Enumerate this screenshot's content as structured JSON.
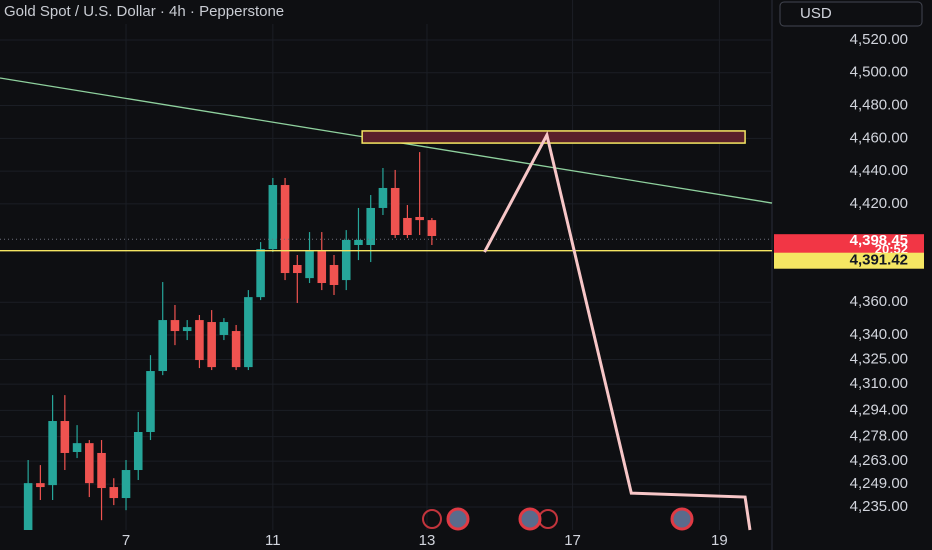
{
  "chart_data": {
    "type": "candlestick",
    "title": "Gold Spot / U.S. Dollar · 4h · Pepperstone",
    "currency": "USD",
    "up_color": "#26a69a",
    "down_color": "#ef5350",
    "x": [
      0,
      1,
      2,
      3,
      4,
      5,
      6,
      7,
      8,
      9,
      10,
      11,
      12,
      13,
      14,
      15,
      16,
      17,
      18,
      19,
      20,
      21,
      22,
      23,
      24,
      25,
      26,
      27,
      28,
      29,
      30,
      31,
      32,
      33
    ],
    "open": [
      4221.0,
      4249.6,
      4248.4,
      4287.5,
      4268.6,
      4274.0,
      4268.0,
      4247.2,
      4240.5,
      4257.6,
      4280.8,
      4318.0,
      4349.1,
      4342.4,
      4349.1,
      4347.9,
      4340.0,
      4342.4,
      4320.4,
      4363.1,
      4392.4,
      4431.5,
      4382.7,
      4374.7,
      4391.8,
      4382.7,
      4373.5,
      4394.9,
      4394.9,
      4417.5,
      4429.7,
      4411.4,
      4412.0,
      4410.1
    ],
    "high": [
      4263.7,
      4260.6,
      4303.3,
      4303.3,
      4285.0,
      4275.9,
      4275.9,
      4252.6,
      4263.7,
      4293.0,
      4327.7,
      4372.3,
      4358.3,
      4349.1,
      4352.2,
      4355.2,
      4350.3,
      4346.1,
      4367.4,
      4396.7,
      4435.8,
      4435.8,
      4388.8,
      4402.8,
      4402.8,
      4388.8,
      4404.0,
      4417.5,
      4425.4,
      4441.9,
      4440.7,
      4419.3,
      4451.6,
      4411.4
    ],
    "low": [
      4221.0,
      4239.3,
      4239.3,
      4257.6,
      4264.9,
      4241.1,
      4227.0,
      4236.2,
      4233.1,
      4251.5,
      4275.9,
      4315.5,
      4333.8,
      4336.9,
      4319.8,
      4318.6,
      4336.9,
      4318.6,
      4318.6,
      4361.3,
      4390.6,
      4373.5,
      4359.5,
      4371.7,
      4367.4,
      4364.4,
      4367.4,
      4385.7,
      4384.5,
      4413.2,
      4399.2,
      4399.2,
      4401.0,
      4394.9
    ],
    "close": [
      4249.6,
      4247.2,
      4287.5,
      4268.0,
      4274.0,
      4249.6,
      4246.6,
      4240.5,
      4257.6,
      4280.8,
      4318.0,
      4349.1,
      4342.4,
      4344.8,
      4324.7,
      4320.4,
      4347.9,
      4320.4,
      4363.1,
      4392.4,
      4431.5,
      4377.8,
      4377.8,
      4391.8,
      4371.7,
      4370.5,
      4398.0,
      4398.0,
      4417.5,
      4429.7,
      4401.0,
      4401.0,
      4410.1,
      4400.4
    ],
    "xlim": [
      -2.3,
      60.8
    ],
    "xticks": [
      {
        "value": 8,
        "label": "7"
      },
      {
        "value": 20,
        "label": "11"
      },
      {
        "value": 32.6,
        "label": "13"
      },
      {
        "value": 44.5,
        "label": "17"
      },
      {
        "value": 56.5,
        "label": "19"
      }
    ],
    "ylim": [
      4221.0,
      4544.4
    ],
    "yticks": [
      {
        "value": 4520,
        "label": "4,520.00"
      },
      {
        "value": 4500,
        "label": "4,500.00"
      },
      {
        "value": 4480,
        "label": "4,480.00"
      },
      {
        "value": 4460,
        "label": "4,460.00"
      },
      {
        "value": 4440,
        "label": "4,440.00"
      },
      {
        "value": 4420,
        "label": "4,420.00"
      },
      {
        "value": 4360,
        "label": "4,360.00"
      },
      {
        "value": 4340,
        "label": "4,340.00"
      },
      {
        "value": 4325,
        "label": "4,325.00"
      },
      {
        "value": 4310,
        "label": "4,310.00"
      },
      {
        "value": 4294,
        "label": "4,294.00"
      },
      {
        "value": 4278,
        "label": "4,278.00"
      },
      {
        "value": 4263,
        "label": "4,263.00"
      },
      {
        "value": 4249,
        "label": "4,249.00"
      },
      {
        "value": 4235,
        "label": "4,235.00"
      }
    ],
    "grid": true,
    "current_price": {
      "value": 4398.45,
      "label": "4,398.45",
      "countdown": "20:52",
      "color": "#f23645"
    },
    "level": {
      "value": 4391.42,
      "label": "4,391.42",
      "color": "#f5e663"
    },
    "trendline": {
      "x": [
        -2.3,
        60.8
      ],
      "values": [
        4496.8,
        4420.5
      ],
      "color": "#8fd19e"
    },
    "zone": {
      "x": [
        27.3,
        58.6
      ],
      "values": [
        4464.5,
        4457.1
      ],
      "color": "#5a1f2a",
      "edge": "#f5e663"
    },
    "projection": {
      "x": [
        37.3,
        42.4,
        49.3,
        58.6,
        59.0
      ],
      "values": [
        4390.6,
        4462.0,
        4243.5,
        4241.1,
        4221.0
      ],
      "color": "#f7c6c7"
    }
  }
}
